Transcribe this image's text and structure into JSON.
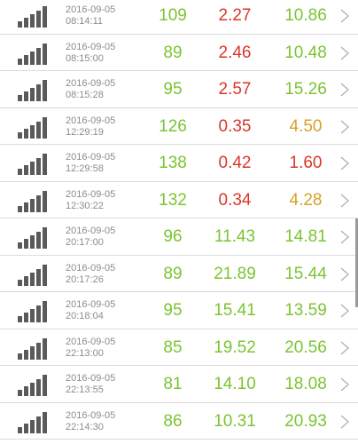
{
  "colors": {
    "green": "#7cc432",
    "red": "#d9372b",
    "orange": "#d6a128",
    "chevron": "#b4b4b4",
    "timestamp": "#8c8c8c",
    "signal": "#5a5a5a"
  },
  "icons": {
    "signal": "signal-bars-icon",
    "chevron": "chevron-right-icon"
  },
  "records": [
    {
      "date": "2016-09-05",
      "time": "08:14:11",
      "v1": "109",
      "v2": "2.27",
      "v3": "10.86",
      "c1": "green",
      "c2": "red",
      "c3": "green"
    },
    {
      "date": "2016-09-05",
      "time": "08:15:00",
      "v1": "89",
      "v2": "2.46",
      "v3": "10.48",
      "c1": "green",
      "c2": "red",
      "c3": "green"
    },
    {
      "date": "2016-09-05",
      "time": "08:15:28",
      "v1": "95",
      "v2": "2.57",
      "v3": "15.26",
      "c1": "green",
      "c2": "red",
      "c3": "green"
    },
    {
      "date": "2016-09-05",
      "time": "12:29:19",
      "v1": "126",
      "v2": "0.35",
      "v3": "4.50",
      "c1": "green",
      "c2": "red",
      "c3": "orange"
    },
    {
      "date": "2016-09-05",
      "time": "12:29:58",
      "v1": "138",
      "v2": "0.42",
      "v3": "1.60",
      "c1": "green",
      "c2": "red",
      "c3": "red"
    },
    {
      "date": "2016-09-05",
      "time": "12:30:22",
      "v1": "132",
      "v2": "0.34",
      "v3": "4.28",
      "c1": "green",
      "c2": "red",
      "c3": "orange"
    },
    {
      "date": "2016-09-05",
      "time": "20:17:00",
      "v1": "96",
      "v2": "11.43",
      "v3": "14.81",
      "c1": "green",
      "c2": "green",
      "c3": "green"
    },
    {
      "date": "2016-09-05",
      "time": "20:17:26",
      "v1": "89",
      "v2": "21.89",
      "v3": "15.44",
      "c1": "green",
      "c2": "green",
      "c3": "green"
    },
    {
      "date": "2016-09-05",
      "time": "20:18:04",
      "v1": "95",
      "v2": "15.41",
      "v3": "13.59",
      "c1": "green",
      "c2": "green",
      "c3": "green"
    },
    {
      "date": "2016-09-05",
      "time": "22:13:00",
      "v1": "85",
      "v2": "19.52",
      "v3": "20.56",
      "c1": "green",
      "c2": "green",
      "c3": "green"
    },
    {
      "date": "2016-09-05",
      "time": "22:13:55",
      "v1": "81",
      "v2": "14.10",
      "v3": "18.08",
      "c1": "green",
      "c2": "green",
      "c3": "green"
    },
    {
      "date": "2016-09-05",
      "time": "22:14:30",
      "v1": "86",
      "v2": "10.31",
      "v3": "20.93",
      "c1": "green",
      "c2": "green",
      "c3": "green"
    }
  ]
}
